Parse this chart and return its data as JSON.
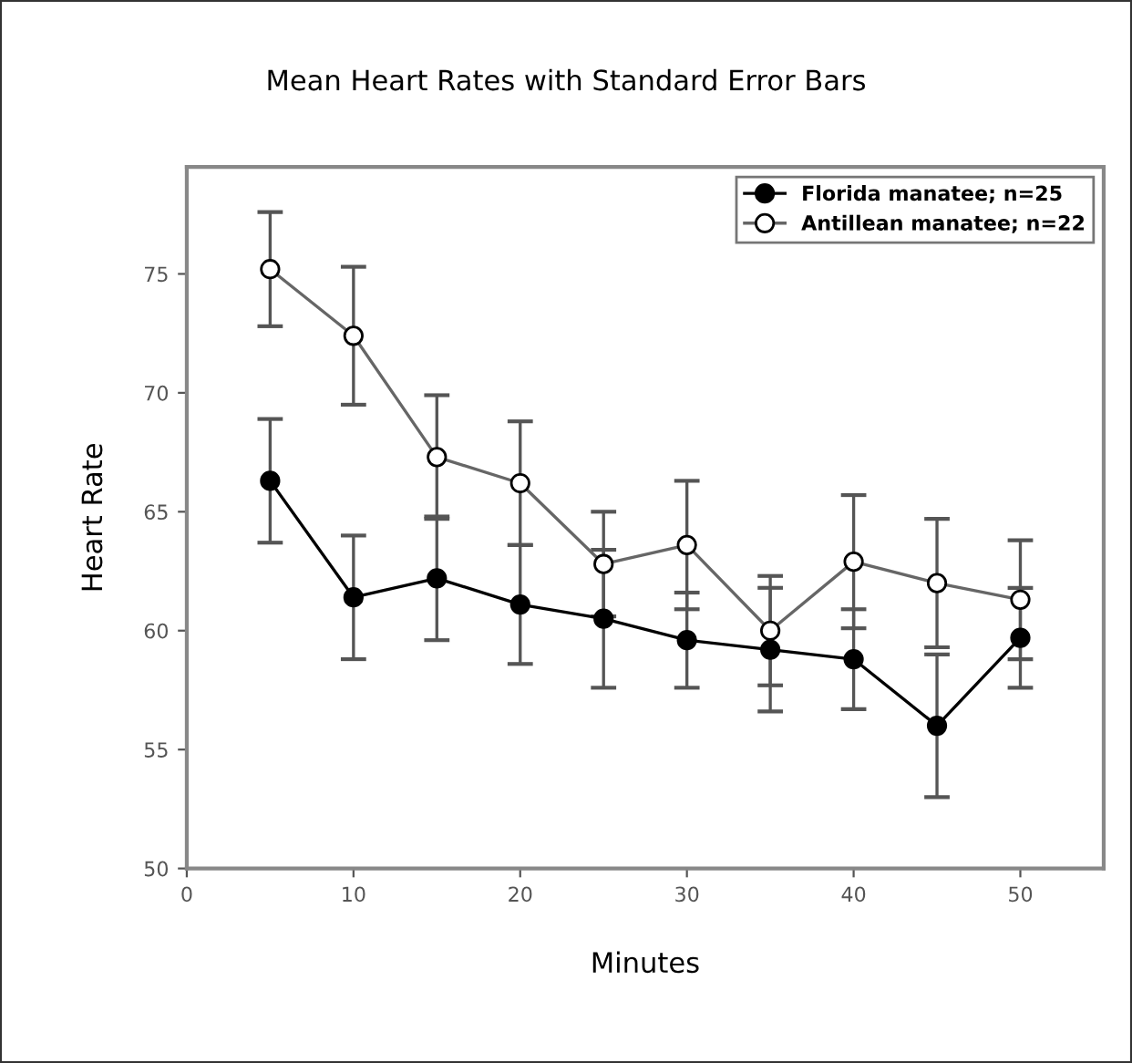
{
  "chart_data": {
    "type": "line",
    "title": "Mean Heart Rates with Standard Error Bars",
    "xlabel": "Minutes",
    "ylabel": "Heart Rate",
    "x": [
      5,
      10,
      15,
      20,
      25,
      30,
      35,
      40,
      45,
      50
    ],
    "series": [
      {
        "name": "Florida manatee; n=25",
        "color": "#000000",
        "values": [
          66.3,
          61.4,
          62.2,
          61.1,
          60.5,
          59.6,
          59.2,
          58.8,
          56.0,
          59.7
        ],
        "errors": [
          2.6,
          2.6,
          2.6,
          2.5,
          2.9,
          2.0,
          2.6,
          2.1,
          3.0,
          2.1
        ]
      },
      {
        "name": "Antillean manatee; n=22",
        "color": "#666666",
        "values": [
          75.2,
          72.4,
          67.3,
          66.2,
          62.8,
          63.6,
          60.0,
          62.9,
          62.0,
          61.3
        ],
        "errors": [
          2.4,
          2.9,
          2.6,
          2.6,
          2.2,
          2.7,
          2.3,
          2.8,
          2.7,
          2.5
        ]
      }
    ],
    "xlim": [
      0,
      55
    ],
    "xticks": [
      0,
      10,
      20,
      30,
      40,
      50
    ],
    "ylim": [
      50,
      79.5
    ],
    "yticks": [
      50,
      55,
      60,
      65,
      70,
      75
    ],
    "marker": "circle",
    "line_style": "solid",
    "grid": false,
    "legend": "top right"
  }
}
